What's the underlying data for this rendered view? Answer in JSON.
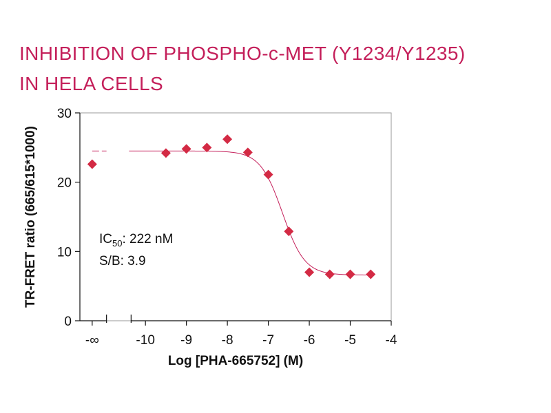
{
  "title_line1": "INHIBITION OF PHOSPHO-c-MET (Y1234/Y1235)",
  "title_line2": "IN HELA CELLS",
  "chart_data": {
    "type": "scatter",
    "title": "INHIBITION OF PHOSPHO-c-MET (Y1234/Y1235) IN HELA CELLS",
    "xlabel": "Log [PHA-665752] (M)",
    "ylabel": "TR-FRET ratio (665/615*1000)",
    "xlim": [
      -11.6,
      -4
    ],
    "ylim": [
      0,
      30
    ],
    "x_ticks": [
      {
        "value": -11.3,
        "label": "-∞"
      },
      {
        "value": -10,
        "label": "-10"
      },
      {
        "value": -9,
        "label": "-9"
      },
      {
        "value": -8,
        "label": "-8"
      },
      {
        "value": -7,
        "label": "-7"
      },
      {
        "value": -6,
        "label": "-6"
      },
      {
        "value": -5,
        "label": "-5"
      },
      {
        "value": -4,
        "label": "-4"
      }
    ],
    "y_ticks": [
      0,
      10,
      20,
      30
    ],
    "axis_break_x": [
      -10.95,
      -10.35
    ],
    "points": [
      {
        "x": -11.3,
        "y": 22.6
      },
      {
        "x": -9.5,
        "y": 24.2
      },
      {
        "x": -9.0,
        "y": 24.8
      },
      {
        "x": -8.5,
        "y": 25.0
      },
      {
        "x": -8.0,
        "y": 26.2
      },
      {
        "x": -7.5,
        "y": 24.3
      },
      {
        "x": -7.0,
        "y": 21.1
      },
      {
        "x": -6.5,
        "y": 12.9
      },
      {
        "x": -6.0,
        "y": 7.0
      },
      {
        "x": -5.5,
        "y": 6.7
      },
      {
        "x": -5.0,
        "y": 6.7
      },
      {
        "x": -4.5,
        "y": 6.7
      }
    ],
    "fit": {
      "top": 24.5,
      "bottom": 6.6,
      "log_ic50": -6.654,
      "hill": 1.6,
      "dashed_segment": [
        -11.3,
        -10.95
      ]
    },
    "marker_color": "#d32a44",
    "line_color": "#c41f5a",
    "annotations": {
      "ic50_prefix": "IC",
      "ic50_subscript": "50",
      "ic50_value": ": 222 nM",
      "sb": "S/B: 3.9"
    },
    "grid": false,
    "legend": "none"
  }
}
